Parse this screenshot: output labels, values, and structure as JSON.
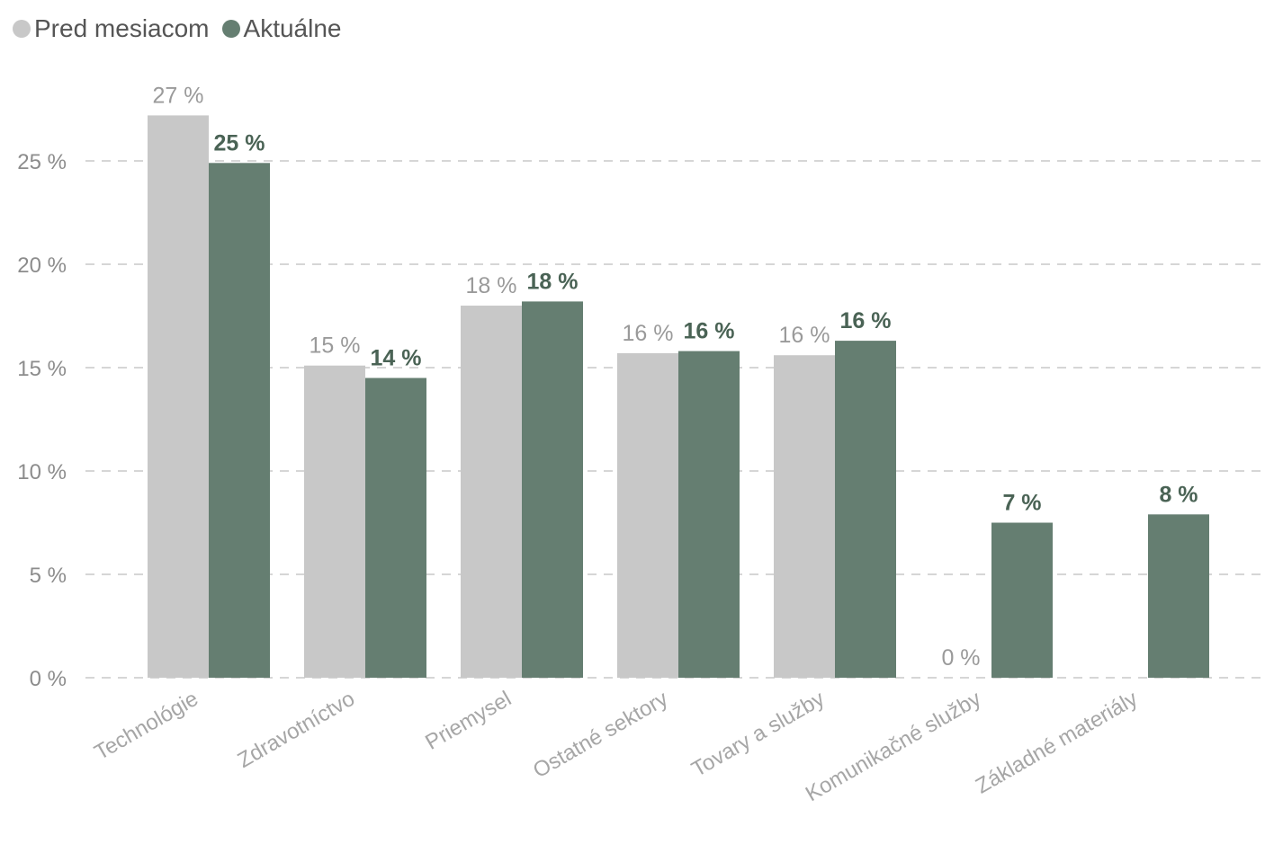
{
  "chart_data": {
    "type": "bar",
    "categories": [
      "Technológie",
      "Zdravotníctvo",
      "Priemysel",
      "Ostatné sektory",
      "Tovary a služby",
      "Komunikačné služby",
      "Základné materiály"
    ],
    "series": [
      {
        "name": "Pred mesiacom",
        "color": "#c8c8c8",
        "label_color": "#9a9a9a",
        "values": [
          27.2,
          15.1,
          18.0,
          15.7,
          15.6,
          0,
          null
        ],
        "labels": [
          "27 %",
          "15 %",
          "18 %",
          "16 %",
          "16 %",
          "0 %",
          ""
        ]
      },
      {
        "name": "Aktuálne",
        "color": "#657e71",
        "label_color": "#4a6355",
        "values": [
          24.9,
          14.5,
          18.2,
          15.8,
          16.3,
          7.5,
          7.9
        ],
        "labels": [
          "25 %",
          "14 %",
          "18 %",
          "16 %",
          "16 %",
          "7 %",
          "8 %"
        ]
      }
    ],
    "y_ticks": [
      "0 %",
      "5 %",
      "10 %",
      "15 %",
      "20 %",
      "25 %"
    ],
    "y_tick_values": [
      0,
      5,
      10,
      15,
      20,
      25
    ],
    "ylim": [
      0,
      27.2
    ],
    "grid": true,
    "grid_style": "dashed",
    "legend_position": "top-left",
    "title": "",
    "xlabel": "",
    "ylabel": ""
  }
}
